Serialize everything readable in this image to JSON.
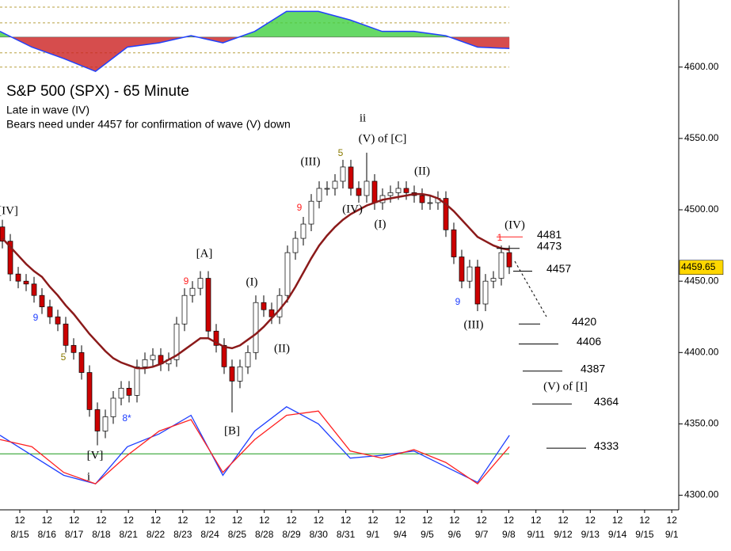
{
  "chart_data": {
    "type": "candlestick",
    "title": "S&P 500 (SPX) - 65 Minute",
    "subtitle": [
      "Late in wave (IV)",
      "Bears need under 4457 for confirmation of wave (V) down"
    ],
    "ylim": [
      4292,
      4647
    ],
    "yticks": [
      {
        "value": 4300,
        "label": "4300.00"
      },
      {
        "value": 4350,
        "label": "4350.00"
      },
      {
        "value": 4400,
        "label": "4400.00"
      },
      {
        "value": 4450,
        "label": "4450.00"
      },
      {
        "value": 4500,
        "label": "4500.00"
      },
      {
        "value": 4550,
        "label": "4550.00"
      },
      {
        "value": 4600,
        "label": "4600.00"
      }
    ],
    "session_label": "12",
    "categories": [
      "8/15",
      "8/16",
      "8/17",
      "8/18",
      "8/21",
      "8/22",
      "8/23",
      "8/24",
      "8/25",
      "8/28",
      "8/29",
      "8/30",
      "8/31",
      "9/1",
      "9/4",
      "9/5",
      "9/6",
      "9/7",
      "9/8",
      "9/11",
      "9/12",
      "9/13",
      "9/14",
      "9/15",
      "9/1"
    ],
    "up_color": "#ffffff",
    "down_color": "#cc0000",
    "open": [
      4488,
      4478,
      4455,
      4450,
      4448,
      4440,
      4432,
      4425,
      4420,
      4405,
      4400,
      4386,
      4360,
      4345,
      4355,
      4368,
      4375,
      4370,
      4390,
      4395,
      4398,
      4392,
      4395,
      4420,
      4440,
      4445,
      4452,
      4415,
      4405,
      4390,
      4380,
      4390,
      4400,
      4435,
      4430,
      4425,
      4440,
      4470,
      4480,
      4490,
      4506,
      4515,
      4515,
      4520,
      4530,
      4515,
      4510,
      4520,
      4505,
      4510,
      4512,
      4515,
      4512,
      4510,
      4505,
      4505,
      4508,
      4486,
      4467,
      4450,
      4460,
      4434,
      4450,
      4452,
      4470
    ],
    "high": [
      4493,
      4483,
      4460,
      4455,
      4453,
      4445,
      4437,
      4430,
      4425,
      4410,
      4405,
      4391,
      4365,
      4360,
      4373,
      4380,
      4380,
      4395,
      4400,
      4403,
      4403,
      4400,
      4425,
      4445,
      4450,
      4457,
      4457,
      4420,
      4410,
      4395,
      4395,
      4405,
      4440,
      4440,
      4435,
      4445,
      4475,
      4485,
      4495,
      4511,
      4520,
      4520,
      4525,
      4535,
      4535,
      4520,
      4540,
      4525,
      4515,
      4517,
      4520,
      4520,
      4517,
      4515,
      4510,
      4513,
      4513,
      4491,
      4472,
      4465,
      4465,
      4455,
      4457,
      4475,
      4475
    ],
    "low": [
      4473,
      4450,
      4445,
      4443,
      4435,
      4427,
      4420,
      4415,
      4400,
      4395,
      4381,
      4355,
      4335,
      4340,
      4350,
      4363,
      4365,
      4365,
      4385,
      4390,
      4387,
      4387,
      4390,
      4415,
      4435,
      4440,
      4410,
      4400,
      4385,
      4358,
      4375,
      4385,
      4395,
      4425,
      4420,
      4420,
      4435,
      4465,
      4475,
      4485,
      4501,
      4510,
      4510,
      4515,
      4510,
      4505,
      4505,
      4500,
      4500,
      4505,
      4507,
      4507,
      4505,
      4500,
      4500,
      4500,
      4481,
      4462,
      4445,
      4445,
      4429,
      4429,
      4445,
      4447,
      4455
    ],
    "close": [
      4478,
      4455,
      4450,
      4448,
      4440,
      4432,
      4425,
      4420,
      4405,
      4400,
      4386,
      4360,
      4345,
      4355,
      4368,
      4375,
      4370,
      4390,
      4395,
      4398,
      4392,
      4395,
      4420,
      4440,
      4445,
      4452,
      4415,
      4405,
      4390,
      4380,
      4390,
      4400,
      4435,
      4430,
      4425,
      4440,
      4470,
      4480,
      4490,
      4506,
      4515,
      4515,
      4520,
      4530,
      4515,
      4510,
      4520,
      4505,
      4510,
      4512,
      4515,
      4512,
      4510,
      4505,
      4505,
      4508,
      4486,
      4467,
      4450,
      4460,
      4434,
      4450,
      4452,
      4470,
      4460
    ],
    "moving_average": {
      "color": "#8b1a1a",
      "values": [
        4480,
        4474,
        4468,
        4462,
        4457,
        4453,
        4446,
        4440,
        4433,
        4427,
        4420,
        4413,
        4407,
        4401,
        4396,
        4393,
        4391,
        4389,
        4389,
        4390,
        4392,
        4395,
        4398,
        4402,
        4406,
        4410,
        4410,
        4407,
        4404,
        4403,
        4405,
        4409,
        4413,
        4418,
        4424,
        4430,
        4437,
        4446,
        4456,
        4466,
        4475,
        4482,
        4488,
        4493,
        4497,
        4500,
        4503,
        4505,
        4507,
        4508,
        4509,
        4510,
        4511,
        4511,
        4510,
        4508,
        4504,
        4499,
        4493,
        4487,
        4481,
        4478,
        4475,
        4473,
        4472
      ]
    },
    "oscillator": {
      "reference_line": 4329,
      "reference_color": "#1a9a1a",
      "series": [
        {
          "color": "#1f3fff",
          "values": [
            4342,
            4328,
            4314,
            4308,
            4334,
            4343,
            4356,
            4314,
            4345,
            4362,
            4350,
            4326,
            4328,
            4331,
            4320,
            4309,
            4342
          ]
        },
        {
          "color": "#ff2020",
          "values": [
            4339,
            4334,
            4316,
            4308,
            4328,
            4345,
            4353,
            4316,
            4339,
            4356,
            4359,
            4331,
            4326,
            4332,
            4323,
            4308,
            4334
          ]
        }
      ]
    },
    "upper_indicator": {
      "color": "#2040ff",
      "up_fill": "#40d040",
      "down_fill": "#cc2020",
      "baseline": 4621,
      "guide_lines": [
        4642,
        4631,
        4610,
        4600
      ],
      "values": [
        4625,
        4614,
        4606,
        4597,
        4614,
        4617,
        4622,
        4617,
        4625,
        4639,
        4639,
        4633,
        4625,
        4625,
        4622,
        4614,
        4613
      ]
    },
    "last_price": 4459.65,
    "levels": [
      4481,
      4473,
      4457,
      4420,
      4406,
      4387,
      4364,
      4333
    ],
    "annotations": [
      {
        "text": "[IV]",
        "color": "#000000"
      },
      {
        "text": "9",
        "color": "#1f3fff"
      },
      {
        "text": "5",
        "color": "#8a7a00"
      },
      {
        "text": "8*",
        "color": "#1f3fff"
      },
      {
        "text": "[V]",
        "color": "#000000"
      },
      {
        "text": "i",
        "color": "#000000"
      },
      {
        "text": "[A]",
        "color": "#000000"
      },
      {
        "text": "9",
        "color": "#ff2020"
      },
      {
        "text": "[B]",
        "color": "#000000"
      },
      {
        "text": "(I)",
        "color": "#000000"
      },
      {
        "text": "(II)",
        "color": "#000000"
      },
      {
        "text": "9",
        "color": "#ff2020"
      },
      {
        "text": "(III)",
        "color": "#000000"
      },
      {
        "text": "5",
        "color": "#8a7a00"
      },
      {
        "text": "ii",
        "color": "#000000"
      },
      {
        "text": "(V) of [C]",
        "color": "#000000"
      },
      {
        "text": "(IV)",
        "color": "#000000"
      },
      {
        "text": "(I)",
        "color": "#000000"
      },
      {
        "text": "(II)",
        "color": "#000000"
      },
      {
        "text": "9",
        "color": "#1f3fff"
      },
      {
        "text": "(III)",
        "color": "#000000"
      },
      {
        "text": "(IV)",
        "color": "#000000"
      },
      {
        "text": "1",
        "color": "#ff2020"
      },
      {
        "text": "(V) of [I]",
        "color": "#000000"
      }
    ]
  }
}
